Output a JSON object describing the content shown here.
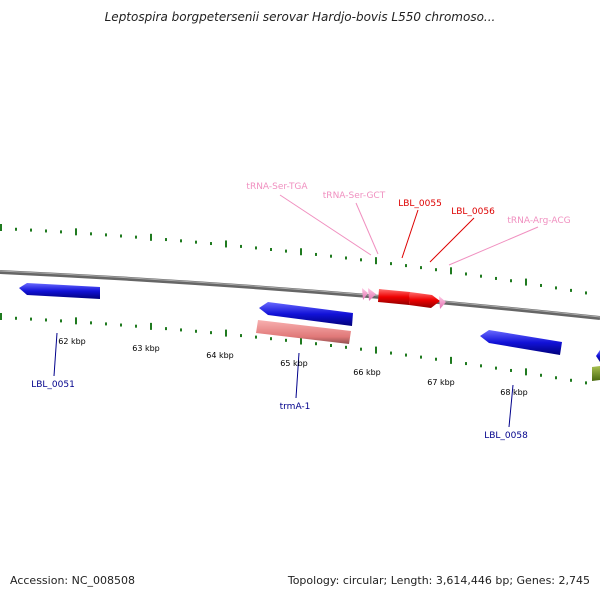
{
  "header": {
    "title": "Leptospira borgpetersenii serovar Hardjo-bovis L550 chromoso..."
  },
  "footer": {
    "accession": "Accession: NC_008508",
    "summary": "Topology: circular; Length: 3,614,446 bp; Genes: 2,745"
  },
  "colors": {
    "backbone": "#777777",
    "ticks": "#1f7a1f",
    "forward_cds": "#1010d0",
    "reverse_cds": "#e01010",
    "trna": "#f08cc0",
    "rrna": "#e07878",
    "other": "#6b8e23"
  },
  "scale": {
    "labels": [
      "62 kbp",
      "63 kbp",
      "64 kbp",
      "65 kbp",
      "66 kbp",
      "67 kbp",
      "68 kbp"
    ]
  },
  "features": {
    "labels": {
      "lbl_0051": "LBL_0051",
      "trma_1": "trmA-1",
      "lbl_0058": "LBL_0058",
      "trna_ser_tga": "tRNA-Ser-TGA",
      "trna_ser_gct": "tRNA-Ser-GCT",
      "lbl_0055": "LBL_0055",
      "lbl_0056": "LBL_0056",
      "trna_arg_acg": "tRNA-Arg-ACG"
    }
  }
}
